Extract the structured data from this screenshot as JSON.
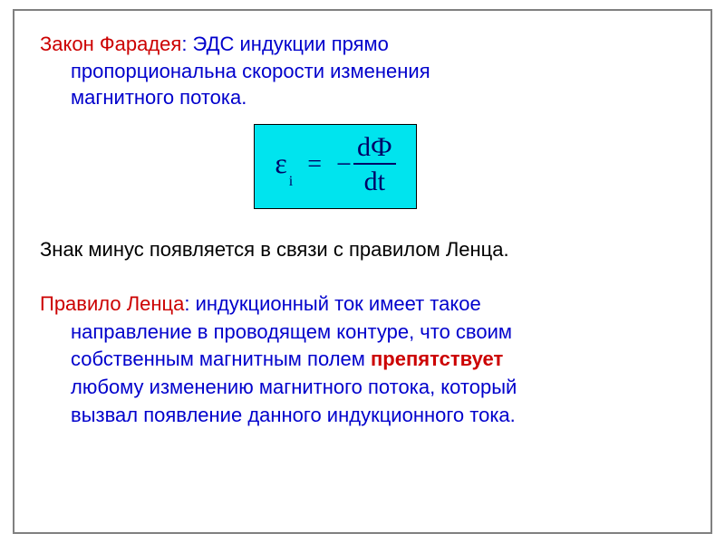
{
  "colors": {
    "border": "#808080",
    "background": "#ffffff",
    "title_red": "#cc0000",
    "main_blue": "#0000cc",
    "black_text": "#000000",
    "formula_bg": "#00e4ee",
    "formula_border": "#000000",
    "formula_text": "#000066",
    "accent_red": "#cc0000"
  },
  "typography": {
    "body_font": "Arial",
    "body_size_pt": 16,
    "formula_font": "Times New Roman",
    "formula_size_pt": 24
  },
  "para1": {
    "title": "Закон Фарадея",
    "line1_after_colon": ": ЭДС индукции прямо",
    "line2": "пропорциональна скорости изменения",
    "line3": "магнитного потока."
  },
  "formula": {
    "lhs_symbol": "ε",
    "lhs_subscript": "i",
    "equals": "=",
    "sign": "−",
    "numerator": "dФ",
    "denominator": "dt"
  },
  "para2": {
    "text": "Знак минус появляется в связи с правилом Ленца."
  },
  "para3": {
    "title": "Правило Ленца",
    "after_colon": ": индукционный ток имеет такое",
    "line2": "направление в проводящем контуре, что своим",
    "line3_a": "собственным магнитным полем ",
    "line3_accent": "препятствует",
    "line4": "любому изменению магнитного потока, который",
    "line5": "вызвал появление данного индукционного тока."
  }
}
